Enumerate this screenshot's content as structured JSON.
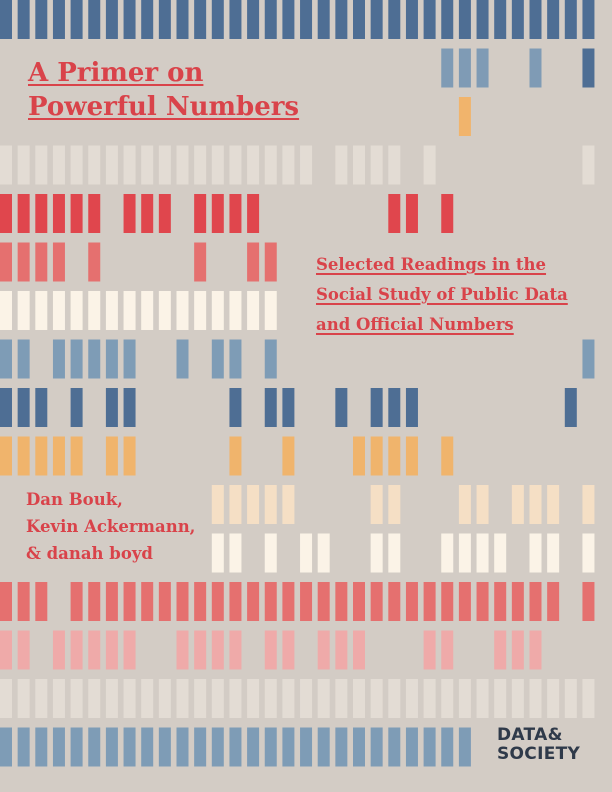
{
  "cover": {
    "title_lines": [
      "A Primer on",
      "Powerful Numbers"
    ],
    "subtitle_lines": [
      "Selected Readings in the",
      "Social Study of Public Data",
      "and Official Numbers"
    ],
    "author_lines": [
      "Dan Bouk,",
      "Kevin Ackermann,",
      "& danah boyd"
    ],
    "publisher_logo_lines": [
      "DATA&",
      "SOCIETY"
    ]
  },
  "palette": {
    "background": "#d3ccc5",
    "title_red": "#d9434a",
    "logo_dark": "#2f3a4a"
  },
  "bar_rows": [
    {
      "color": "#4e6e94",
      "pattern": "11111111111111111111111111111111111"
    },
    {
      "color": "#7f9bb5",
      "pattern": "00000000000000000000000001110010033"
    },
    {
      "color": "#f1b46c",
      "pattern": "00000000000000000000000000100000001"
    },
    {
      "color": "#e3dcd4",
      "pattern": "11111111111111111101111010000000011"
    },
    {
      "color": "#e0464d",
      "pattern": "11111101110111100000001101000000000"
    },
    {
      "color": "#e5706f",
      "pattern": "11110100000100110000000000000000000"
    },
    {
      "color": "#fbf3e7",
      "pattern": "11111111111111110000000000000000000"
    },
    {
      "color": "#7e9cb6",
      "pattern": "11011111001011010000000000000000011"
    },
    {
      "color": "#4e6e94",
      "pattern": "11101011000001011001011100000000101"
    },
    {
      "color": "#f0b46c",
      "pattern": "11111011000001001000111101000000000"
    },
    {
      "color": "#f5dfc5",
      "pattern": "00000000000011111000011000110111011"
    },
    {
      "color": "#fbf3e7",
      "pattern": "00000000000011010110011001111011011"
    },
    {
      "color": "#e5706f",
      "pattern": "11101111111111111111111111111111011"
    },
    {
      "color": "#efaaa9",
      "pattern": "11011111001111011011100011001110000"
    },
    {
      "color": "#e3dcd4",
      "pattern": "11111111111111111111111111111111111"
    },
    {
      "color": "#7e9cb6",
      "pattern": "11111111111111111111111111100000000"
    }
  ]
}
